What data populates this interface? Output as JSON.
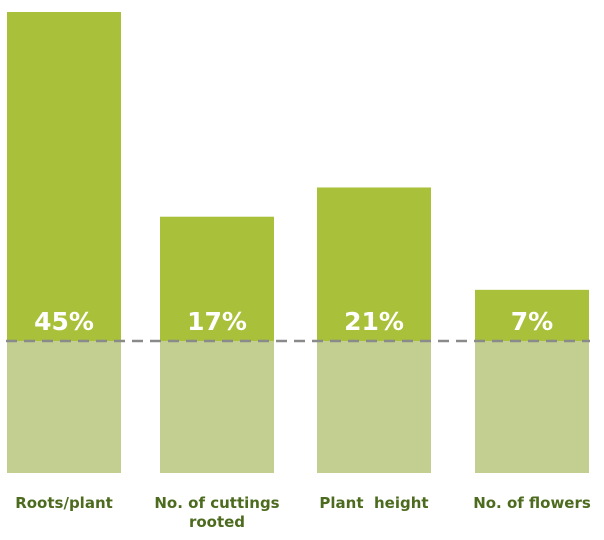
{
  "chart_data": {
    "type": "bar",
    "categories": [
      "Roots/plant",
      "No. of cuttings rooted",
      "Plant height",
      "No. of flowers"
    ],
    "category_lines": [
      [
        "Roots/plant"
      ],
      [
        "No. of cuttings",
        "rooted"
      ],
      [
        "Plant  height"
      ],
      [
        "No. of flowers"
      ]
    ],
    "values": [
      45,
      17,
      21,
      7
    ],
    "data_labels": [
      "45%",
      "17%",
      "21%",
      "7%"
    ],
    "unit": "%",
    "baseline_label": "",
    "grid": false,
    "legend": "none",
    "colors": {
      "increase": "#a9c13a",
      "base": "#c3cf91",
      "baseline_dash": "#8a8a8a",
      "category_text": "#4c6b1e",
      "value_text": "#ffffff"
    }
  }
}
